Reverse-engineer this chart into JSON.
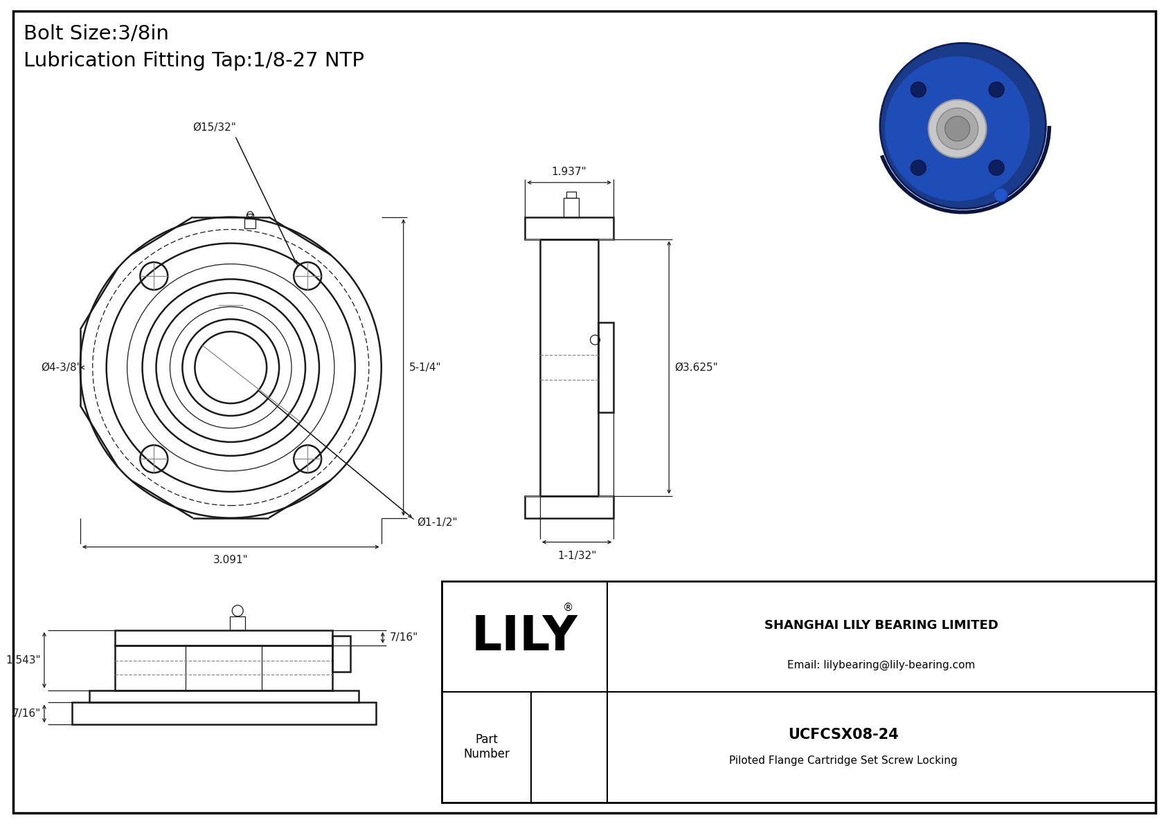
{
  "bg_color": "#ffffff",
  "line_color": "#1a1a1a",
  "dim_color": "#1a1a1a",
  "gray_color": "#888888",
  "title_bolt": "Bolt Size:3/8in",
  "title_lub": "Lubrication Fitting Tap:1/8-27 NTP",
  "company": "SHANGHAI LILY BEARING LIMITED",
  "email": "Email: lilybearing@lily-bearing.com",
  "part_label": "Part\nNumber",
  "part_number": "UCFCSX08-24",
  "part_desc": "Piloted Flange Cartridge Set Screw Locking",
  "lily_text": "LILY",
  "dim_d1532": "Ø15/32\"",
  "dim_d438": "Ø4-3/8\"",
  "dim_3091": "3.091\"",
  "dim_d112": "Ø1-1/2\"",
  "dim_514": "5-1/4\"",
  "dim_1937": "1.937\"",
  "dim_d3625": "Ø3.625\"",
  "dim_1132": "1-1/32\"",
  "dim_1543": "1.543\"",
  "dim_716_top": "7/16\"",
  "dim_716_bot": "7/16\""
}
